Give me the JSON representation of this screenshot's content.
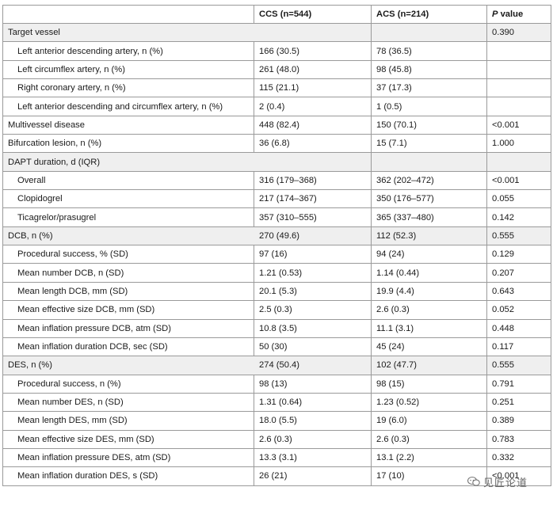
{
  "header": {
    "blank": "",
    "ccs": "CCS (n=544)",
    "acs": "ACS (n=214)",
    "p_italic": "P",
    "p_rest": " value"
  },
  "rows": [
    {
      "label": "Target vessel",
      "ccs": "",
      "acs": "",
      "p": "0.390",
      "section": true
    },
    {
      "label": "Left anterior descending artery, n (%)",
      "ccs": "166 (30.5)",
      "acs": "78 (36.5)",
      "p": "",
      "sub": true
    },
    {
      "label": "Left circumflex artery, n (%)",
      "ccs": "261 (48.0)",
      "acs": "98 (45.8)",
      "p": "",
      "sub": true
    },
    {
      "label": "Right coronary artery, n (%)",
      "ccs": "115 (21.1)",
      "acs": "37 (17.3)",
      "p": "",
      "sub": true
    },
    {
      "label": "Left anterior descending and circumflex artery, n (%)",
      "ccs": "2 (0.4)",
      "acs": "1 (0.5)",
      "p": "",
      "sub": true
    },
    {
      "label": "Multivessel disease",
      "ccs": "448 (82.4)",
      "acs": "150 (70.1)",
      "p": "<0.001"
    },
    {
      "label": "Bifurcation lesion, n (%)",
      "ccs": "36 (6.8)",
      "acs": "15 (7.1)",
      "p": "1.000"
    },
    {
      "label": "DAPT duration, d (IQR)",
      "ccs": "",
      "acs": "",
      "p": "",
      "section": true
    },
    {
      "label": "Overall",
      "ccs": "316 (179–368)",
      "acs": "362 (202–472)",
      "p": "<0.001",
      "sub": true
    },
    {
      "label": "Clopidogrel",
      "ccs": "217 (174–367)",
      "acs": "350 (176–577)",
      "p": "0.055",
      "sub": true
    },
    {
      "label": "Ticagrelor/prasugrel",
      "ccs": "357 (310–555)",
      "acs": "365 (337–480)",
      "p": "0.142",
      "sub": true
    },
    {
      "label": "DCB, n (%)",
      "ccs": "270 (49.6)",
      "acs": "112 (52.3)",
      "p": "0.555",
      "section": true
    },
    {
      "label": "Procedural success, % (SD)",
      "ccs": "97 (16)",
      "acs": "94 (24)",
      "p": "0.129",
      "sub": true
    },
    {
      "label": "Mean number DCB, n (SD)",
      "ccs": "1.21 (0.53)",
      "acs": "1.14 (0.44)",
      "p": "0.207",
      "sub": true
    },
    {
      "label": "Mean length DCB, mm (SD)",
      "ccs": "20.1 (5.3)",
      "acs": "19.9 (4.4)",
      "p": "0.643",
      "sub": true
    },
    {
      "label": "Mean effective size DCB, mm (SD)",
      "ccs": "2.5 (0.3)",
      "acs": "2.6 (0.3)",
      "p": "0.052",
      "sub": true
    },
    {
      "label": "Mean inflation pressure DCB, atm (SD)",
      "ccs": "10.8 (3.5)",
      "acs": "11.1 (3.1)",
      "p": "0.448",
      "sub": true
    },
    {
      "label": "Mean inflation duration DCB, sec (SD)",
      "ccs": "50 (30)",
      "acs": "45 (24)",
      "p": "0.117",
      "sub": true
    },
    {
      "label": "DES, n (%)",
      "ccs": "274 (50.4)",
      "acs": "102 (47.7)",
      "p": "0.555",
      "section": true
    },
    {
      "label": "Procedural success, n (%)",
      "ccs": "98 (13)",
      "acs": "98 (15)",
      "p": "0.791",
      "sub": true
    },
    {
      "label": "Mean number DES, n (SD)",
      "ccs": "1.31 (0.64)",
      "acs": "1.23 (0.52)",
      "p": "0.251",
      "sub": true
    },
    {
      "label": "Mean length DES, mm (SD)",
      "ccs": "18.0 (5.5)",
      "acs": "19 (6.0)",
      "p": "0.389",
      "sub": true
    },
    {
      "label": "Mean effective size DES, mm (SD)",
      "ccs": "2.6 (0.3)",
      "acs": "2.6 (0.3)",
      "p": "0.783",
      "sub": true
    },
    {
      "label": "Mean inflation pressure DES, atm (SD)",
      "ccs": "13.3 (3.1)",
      "acs": "13.1 (2.2)",
      "p": "0.332",
      "sub": true
    },
    {
      "label": "Mean inflation duration DES, s (SD)",
      "ccs": "26 (21)",
      "acs": "17 (10)",
      "p": "<0.001",
      "sub": true
    }
  ],
  "watermark": {
    "text": "见匠论道",
    "icon": "chat-bubble-icon"
  }
}
